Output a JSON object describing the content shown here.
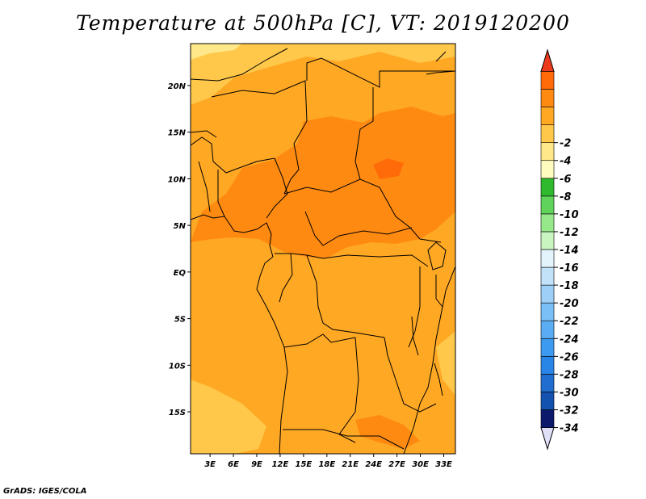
{
  "title": "Temperature at 500hPa [C], VT: 2019120200",
  "credit": "GrADS: IGES/COLA",
  "map": {
    "lat_ticks": [
      {
        "value": 20,
        "label": "20N"
      },
      {
        "value": 15,
        "label": "15N"
      },
      {
        "value": 10,
        "label": "10N"
      },
      {
        "value": 5,
        "label": "5N"
      },
      {
        "value": 0,
        "label": "EQ"
      },
      {
        "value": -5,
        "label": "5S"
      },
      {
        "value": -10,
        "label": "10S"
      },
      {
        "value": -15,
        "label": "15S"
      }
    ],
    "lon_ticks": [
      {
        "value": 3,
        "label": "3E"
      },
      {
        "value": 6,
        "label": "6E"
      },
      {
        "value": 9,
        "label": "9E"
      },
      {
        "value": 12,
        "label": "12E"
      },
      {
        "value": 15,
        "label": "15E"
      },
      {
        "value": 18,
        "label": "18E"
      },
      {
        "value": 21,
        "label": "21E"
      },
      {
        "value": 24,
        "label": "24E"
      },
      {
        "value": 27,
        "label": "27E"
      },
      {
        "value": 30,
        "label": "30E"
      },
      {
        "value": 33,
        "label": "33E"
      }
    ]
  },
  "colorbar": {
    "colors": [
      "#e0e0f8",
      "#0b1a6b",
      "#1452b0",
      "#1f6ed0",
      "#2a86e6",
      "#3c9bf0",
      "#5aadf2",
      "#7abff5",
      "#9ed0f7",
      "#c2e2f9",
      "#e4f4fb",
      "#c8f5c0",
      "#96e88a",
      "#5fd35a",
      "#2fb92f",
      "#fffcc0",
      "#ffe88a",
      "#ffc84a",
      "#ffa824",
      "#ff8a12",
      "#ff6b08",
      "#ee3a1c"
    ],
    "labels": [
      "-34",
      "-32",
      "-30",
      "-28",
      "-26",
      "-24",
      "-22",
      "-20",
      "-18",
      "-16",
      "-14",
      "-12",
      "-10",
      "-8",
      "-6",
      "-4",
      "-2"
    ]
  }
}
